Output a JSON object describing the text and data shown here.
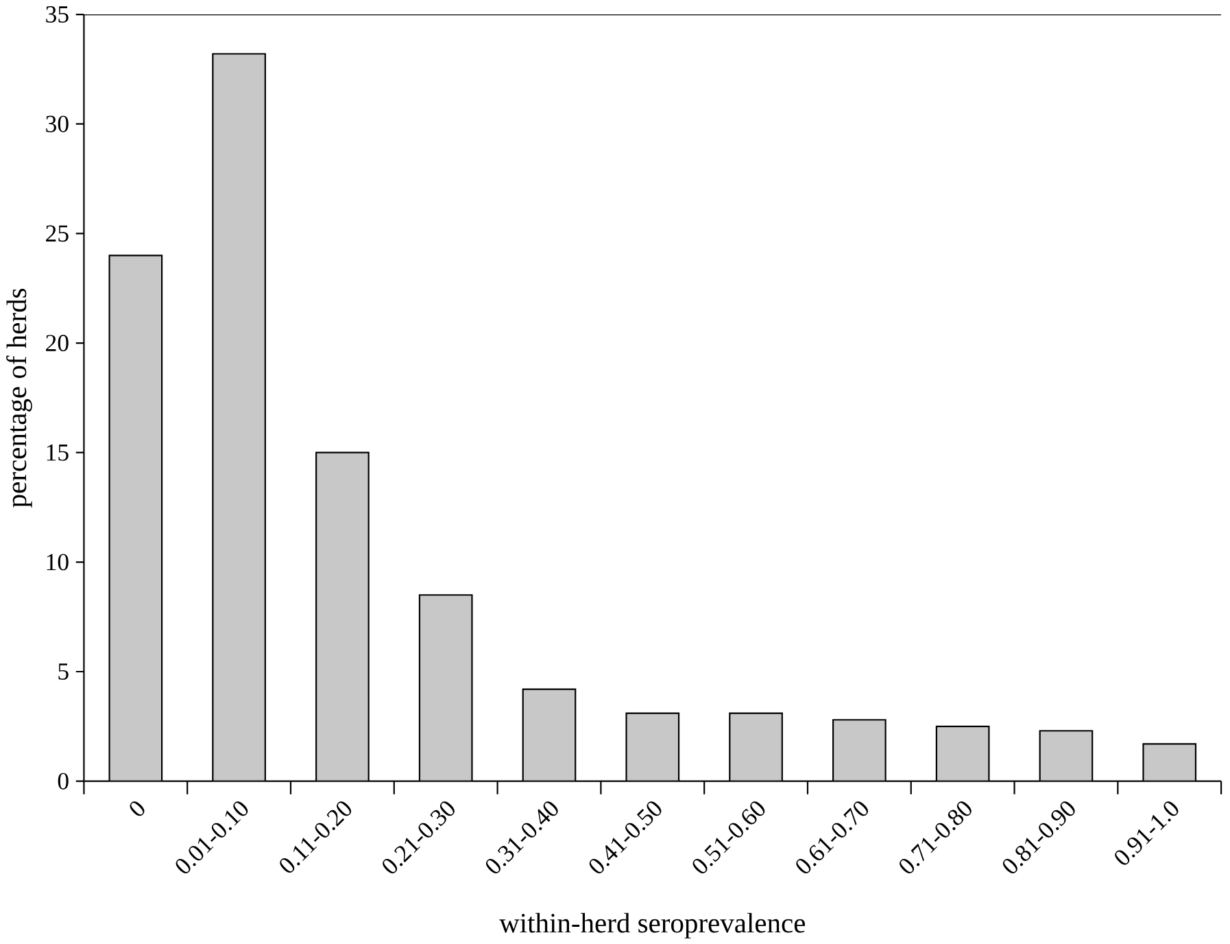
{
  "chart_data": {
    "type": "bar",
    "xlabel": "within-herd seroprevalence",
    "ylabel": "percentage of herds",
    "categories": [
      "0",
      "0.01-0.10",
      "0.11-0.20",
      "0.21-0.30",
      "0.31-0.40",
      "0.41-0.50",
      "0.51-0.60",
      "0.61-0.70",
      "0.71-0.80",
      "0.81-0.90",
      "0.91-1.0"
    ],
    "values": [
      24,
      33.2,
      15,
      8.5,
      4.2,
      3.1,
      3.1,
      2.8,
      2.5,
      2.3,
      1.7
    ],
    "color": "#c8c8c8",
    "ylim": [
      0,
      35
    ],
    "yticks": [
      0,
      5,
      10,
      15,
      20,
      25,
      30,
      35
    ]
  }
}
